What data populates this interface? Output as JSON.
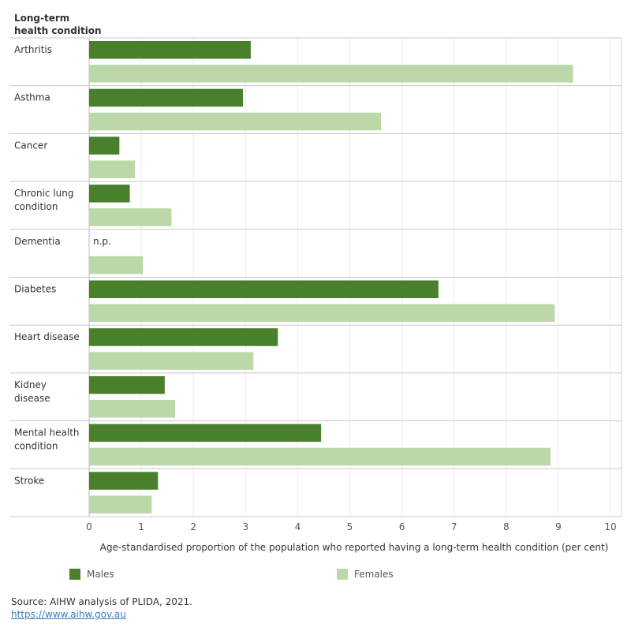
{
  "chart_data": {
    "type": "bar",
    "orientation": "horizontal",
    "y_header": "Long-term\nhealth condition",
    "xlabel": "Age-standardised proportion of the population who reported having a long-term health condition (per cent)",
    "xlim": [
      0,
      10
    ],
    "x_ticks": [
      0,
      1,
      2,
      3,
      4,
      5,
      6,
      7,
      8,
      9,
      10
    ],
    "grid": true,
    "legend_position": "bottom",
    "categories": [
      "Arthritis",
      "Asthma",
      "Cancer",
      "Chronic lung condition",
      "Dementia",
      "Diabetes",
      "Heart disease",
      "Kidney disease",
      "Mental health condition",
      "Stroke"
    ],
    "series": [
      {
        "name": "Males",
        "color": "#4a7f2b",
        "values": [
          3.1,
          2.95,
          0.58,
          0.78,
          null,
          6.7,
          3.62,
          1.45,
          4.45,
          1.32
        ]
      },
      {
        "name": "Females",
        "color": "#bcd7a8",
        "values": [
          9.28,
          5.6,
          0.88,
          1.58,
          1.03,
          8.93,
          3.15,
          1.65,
          8.85,
          1.2
        ]
      }
    ],
    "missing_label": "n.p."
  },
  "legend": {
    "males": "Males",
    "females": "Females"
  },
  "source": {
    "text": "Source: AIHW analysis of PLIDA, 2021.",
    "link": "https://www.aihw.gov.au"
  }
}
